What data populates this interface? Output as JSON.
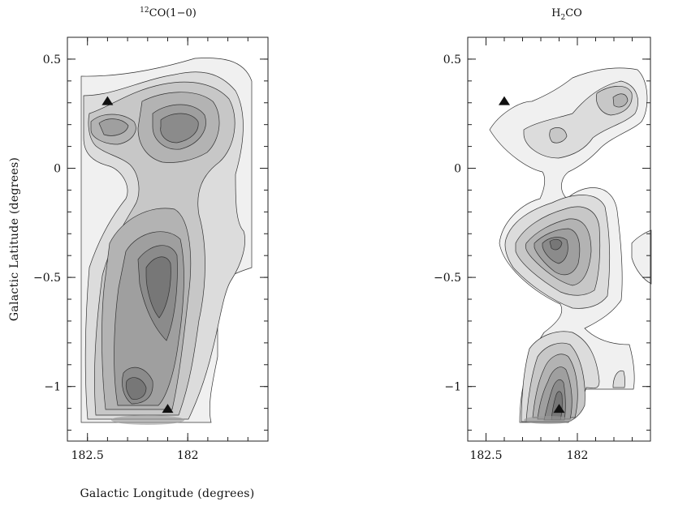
{
  "chart_data": [
    {
      "type": "contour",
      "title": "CO(1−0)",
      "title_superscript": "12",
      "xlabel": "Galactic Longitude (degrees)",
      "ylabel": "Galactic Latitude (degrees)",
      "xlim": [
        182.6,
        181.6
      ],
      "ylim": [
        -1.25,
        0.6
      ],
      "xticks": [
        {
          "value": 182.5,
          "label": "182.5"
        },
        {
          "value": 182.0,
          "label": "182"
        }
      ],
      "yticks": [
        {
          "value": 0.5,
          "label": "0.5"
        },
        {
          "value": 0,
          "label": "0"
        },
        {
          "value": -0.5,
          "label": "−0.5"
        },
        {
          "value": -1,
          "label": "−1"
        }
      ],
      "markers": [
        {
          "shape": "triangle",
          "x": 182.4,
          "y": 0.31
        },
        {
          "shape": "triangle",
          "x": 182.1,
          "y": -1.1
        }
      ]
    },
    {
      "type": "contour",
      "title": "H",
      "title_subscript": "2",
      "title_suffix": "CO",
      "xlim": [
        182.6,
        181.6
      ],
      "ylim": [
        -1.25,
        0.6
      ],
      "xticks": [
        {
          "value": 182.5,
          "label": "182.5"
        },
        {
          "value": 182.0,
          "label": "182"
        }
      ],
      "yticks": [
        {
          "value": 0.5,
          "label": "0.5"
        },
        {
          "value": 0,
          "label": "0"
        },
        {
          "value": -0.5,
          "label": "−0.5"
        },
        {
          "value": -1,
          "label": "−1"
        }
      ],
      "markers": [
        {
          "shape": "triangle",
          "x": 182.4,
          "y": 0.31
        },
        {
          "shape": "triangle",
          "x": 182.1,
          "y": -1.1
        }
      ]
    }
  ]
}
